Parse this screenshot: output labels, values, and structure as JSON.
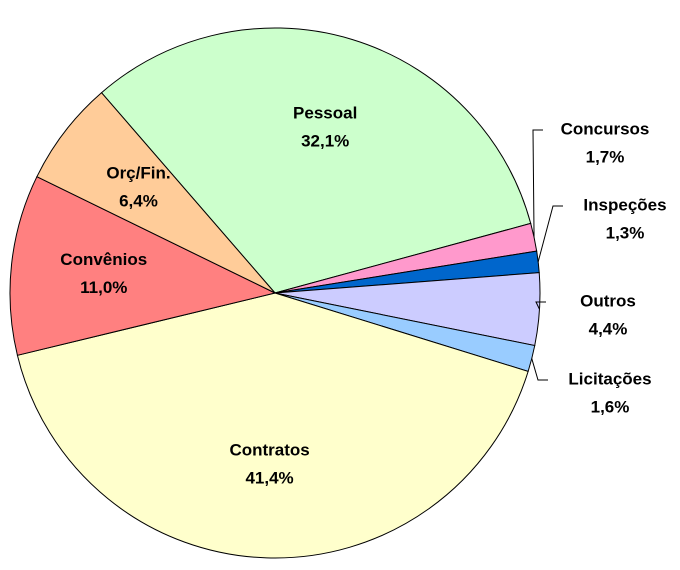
{
  "chart_data": {
    "type": "pie",
    "categories": [
      "Pessoal",
      "Concursos",
      "Inspeções",
      "Outros",
      "Licitações",
      "Contratos",
      "Convênios",
      "Orç/Fin."
    ],
    "values": [
      32.1,
      1.7,
      1.3,
      4.4,
      1.6,
      41.4,
      11.0,
      6.4
    ],
    "value_labels": [
      "32,1%",
      "1,7%",
      "1,3%",
      "4,4%",
      "1,6%",
      "41,4%",
      "11,0%",
      "6,4%"
    ],
    "colors": [
      "#ccffcc",
      "#ff99cc",
      "#0066cc",
      "#ccccff",
      "#99ccff",
      "#ffffcc",
      "#ff8080",
      "#ffcc99"
    ]
  }
}
